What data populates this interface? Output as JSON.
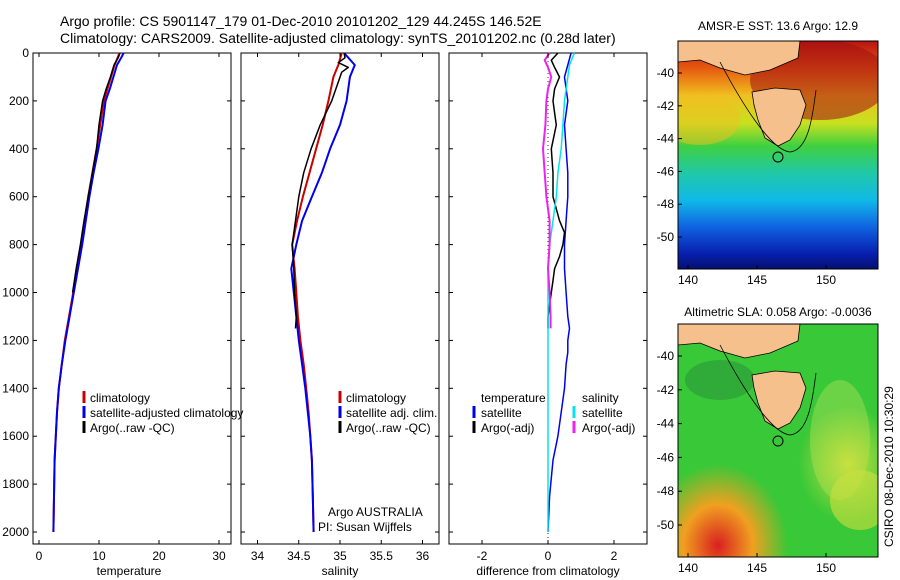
{
  "header": {
    "title_line1": "Argo profile: CS 5901147_179 01-Dec-2010 20101202_129 44.245S 146.52E",
    "title_line2": "Climatology: CARS2009. Satellite-adjusted climatology: synTS_20101202.nc (0.28d later)"
  },
  "depth_axis": {
    "ylim": [
      2050,
      0
    ],
    "ticks": [
      0,
      200,
      400,
      600,
      800,
      1000,
      1200,
      1400,
      1600,
      1800,
      2000
    ],
    "tick_labels": [
      "0",
      "200",
      "400",
      "600",
      "800",
      "1000",
      "1200",
      "1400",
      "1600",
      "1800",
      "2000"
    ]
  },
  "colors": {
    "climatology": "#cc0000",
    "satellite": "#0000ee",
    "argo": "#000000",
    "sal_satellite": "#00e5ee",
    "sal_argo": "#ee22ee",
    "land": "#f5c08c"
  },
  "chart_data": [
    {
      "type": "line",
      "xlabel": "temperature",
      "xlim": [
        -1,
        32
      ],
      "xticks": [
        0,
        10,
        20,
        30
      ],
      "xtick_labels": [
        "0",
        "10",
        "20",
        "30"
      ],
      "legend": [
        "climatology",
        "satellite-adjusted climatology",
        "Argo(..raw -QC)"
      ],
      "legend_position": "lower-center",
      "series": [
        {
          "name": "climatology",
          "color": "#cc0000",
          "width": 2,
          "x": [
            13.4,
            13.1,
            12.6,
            12.0,
            11.4,
            10.8,
            10.2,
            9.6,
            8.9,
            8.2,
            7.6,
            7.0,
            6.3,
            5.7,
            5.0,
            4.3,
            3.8,
            3.3,
            3.0,
            2.8,
            2.6,
            2.5,
            2.4
          ],
          "y": [
            0,
            20,
            50,
            100,
            150,
            200,
            300,
            400,
            500,
            600,
            700,
            800,
            900,
            1000,
            1100,
            1200,
            1300,
            1400,
            1500,
            1600,
            1700,
            1850,
            2000
          ]
        },
        {
          "name": "satellite-adjusted climatology",
          "color": "#0000ee",
          "width": 2,
          "x": [
            14.1,
            13.7,
            13.0,
            12.4,
            11.8,
            11.1,
            10.6,
            9.9,
            9.1,
            8.4,
            7.8,
            7.2,
            6.5,
            5.8,
            5.1,
            4.4,
            3.8,
            3.3,
            3.0,
            2.8,
            2.6,
            2.5,
            2.4
          ],
          "y": [
            0,
            20,
            50,
            100,
            150,
            200,
            300,
            400,
            500,
            600,
            700,
            800,
            900,
            1000,
            1100,
            1200,
            1300,
            1400,
            1500,
            1600,
            1700,
            1850,
            2000
          ]
        },
        {
          "name": "Argo(..raw -QC)",
          "color": "#000000",
          "width": 1.5,
          "x": [
            13.5,
            13.2,
            12.5,
            11.9,
            11.2,
            10.6,
            10.0,
            9.6,
            8.9,
            8.2,
            7.5,
            6.9,
            6.2,
            5.6
          ],
          "y": [
            0,
            20,
            50,
            100,
            150,
            200,
            300,
            400,
            500,
            600,
            700,
            800,
            900,
            1000
          ]
        }
      ]
    },
    {
      "type": "line",
      "xlabel": "salinity",
      "xlim": [
        33.8,
        36.2
      ],
      "xticks": [
        34,
        34.5,
        35,
        35.5,
        36
      ],
      "xtick_labels": [
        "34",
        "34.5",
        "35",
        "35.5",
        "36"
      ],
      "legend": [
        "climatology",
        "satellite adj. clim.",
        "Argo(..raw -QC)"
      ],
      "legend_position": "lower-right",
      "annotation_lines": [
        "Argo AUSTRALIA",
        "PI: Susan Wijffels"
      ],
      "series": [
        {
          "name": "climatology",
          "color": "#cc0000",
          "width": 2,
          "x": [
            35.02,
            34.98,
            34.92,
            34.86,
            34.79,
            34.71,
            34.63,
            34.55,
            34.48,
            34.42,
            34.45,
            34.47,
            34.49,
            34.52,
            34.56,
            34.59,
            34.62,
            34.64,
            34.66,
            34.67,
            34.68
          ],
          "y": [
            0,
            50,
            100,
            200,
            300,
            400,
            500,
            600,
            700,
            800,
            900,
            1000,
            1100,
            1200,
            1300,
            1400,
            1500,
            1600,
            1700,
            1850,
            2000
          ]
        },
        {
          "name": "satellite adj. clim.",
          "color": "#0000ee",
          "width": 2,
          "x": [
            35.05,
            35.18,
            35.12,
            35.08,
            35.0,
            34.88,
            34.78,
            34.66,
            34.54,
            34.47,
            34.41,
            34.44,
            34.47,
            34.5,
            34.54,
            34.58,
            34.61,
            34.64,
            34.66,
            34.67,
            34.68
          ],
          "y": [
            0,
            50,
            100,
            200,
            300,
            400,
            500,
            600,
            700,
            800,
            900,
            1000,
            1100,
            1200,
            1300,
            1400,
            1500,
            1600,
            1700,
            1850,
            2000
          ]
        },
        {
          "name": "Argo(..raw -QC)",
          "color": "#000000",
          "width": 1.5,
          "x": [
            35.05,
            35.06,
            34.98,
            35.1,
            35.02,
            34.9,
            34.76,
            34.65,
            34.56,
            34.5,
            34.46,
            34.42,
            34.44,
            34.45,
            34.47,
            34.46
          ],
          "y": [
            0,
            20,
            40,
            60,
            80,
            200,
            300,
            400,
            500,
            600,
            700,
            800,
            900,
            1000,
            1100,
            1150
          ]
        }
      ]
    },
    {
      "type": "line",
      "xlabel": "difference from climatology",
      "xlim": [
        -3.0,
        3.0
      ],
      "xticks": [
        -2,
        0,
        2
      ],
      "xtick_labels": [
        "-2",
        "0",
        "2"
      ],
      "legend": [
        "temperature",
        "satellite",
        "Argo(-adj)",
        "salinity",
        "satellite",
        "Argo(-adj)"
      ],
      "legend_position": "lower-center",
      "series": [
        {
          "name": "temperature satellite",
          "color": "#0000ee",
          "width": 1.5,
          "x": [
            0.7,
            0.6,
            0.5,
            0.6,
            0.5,
            0.55,
            0.6,
            0.6,
            0.55,
            0.5,
            0.5,
            0.55,
            0.6,
            0.65,
            0.6,
            0.6,
            0.55,
            0.5,
            0.4,
            0.3,
            0.15,
            0.05,
            0.0
          ],
          "y": [
            0,
            50,
            100,
            200,
            300,
            400,
            500,
            600,
            700,
            800,
            900,
            1000,
            1100,
            1150,
            1200,
            1250,
            1300,
            1400,
            1500,
            1600,
            1700,
            1850,
            2000
          ]
        },
        {
          "name": "temperature Argo(-adj)",
          "color": "#000000",
          "width": 1.5,
          "x": [
            0.3,
            0.1,
            0.2,
            0.35,
            0.2,
            0.15,
            0.2,
            0.25,
            0.1,
            0.15,
            0.15,
            0.35,
            0.5,
            0.45,
            0.35,
            0.2,
            0.15,
            0.1,
            0.05,
            0.0,
            0.0
          ],
          "y": [
            0,
            30,
            60,
            100,
            150,
            200,
            250,
            300,
            400,
            500,
            600,
            700,
            750,
            800,
            850,
            900,
            950,
            1000,
            1050,
            1100,
            1150
          ]
        },
        {
          "name": "salinity satellite",
          "color": "#00e5ee",
          "width": 1.5,
          "x": [
            0.8,
            0.65,
            0.6,
            0.5,
            0.45,
            0.4,
            0.3,
            0.25,
            0.15,
            0.05,
            0.0,
            0.0,
            0.0,
            0.0,
            0.0,
            0.0,
            0.0,
            0.0,
            0.0,
            0.0,
            0.0
          ],
          "y": [
            0,
            50,
            100,
            200,
            300,
            400,
            500,
            600,
            700,
            800,
            900,
            1000,
            1100,
            1200,
            1300,
            1400,
            1500,
            1600,
            1700,
            1850,
            2000
          ]
        },
        {
          "name": "salinity Argo(-adj)",
          "color": "#ee22ee",
          "width": 2,
          "x": [
            0.05,
            -0.1,
            0.0,
            0.1,
            0.0,
            -0.05,
            -0.08,
            -0.15,
            -0.1,
            -0.05,
            0.05,
            0.05,
            0.0,
            0.05,
            0.08,
            0.08
          ],
          "y": [
            0,
            30,
            60,
            100,
            150,
            200,
            300,
            400,
            500,
            600,
            700,
            800,
            900,
            1000,
            1100,
            1150
          ]
        }
      ]
    }
  ],
  "map1": {
    "title": "AMSR-E SST: 13.6 Argo: 12.9",
    "xticks": [
      "140",
      "145",
      "150"
    ],
    "yticks": [
      "-40",
      "-42",
      "-44",
      "-46",
      "-48",
      "-50"
    ]
  },
  "map2": {
    "title": "Altimetric SLA: 0.058 Argo: -0.0036",
    "xticks": [
      "140",
      "145",
      "150"
    ],
    "yticks": [
      "-40",
      "-42",
      "-44",
      "-46",
      "-48",
      "-50"
    ]
  },
  "side_text": "CSIRO 08-Dec-2010 10:30:29"
}
